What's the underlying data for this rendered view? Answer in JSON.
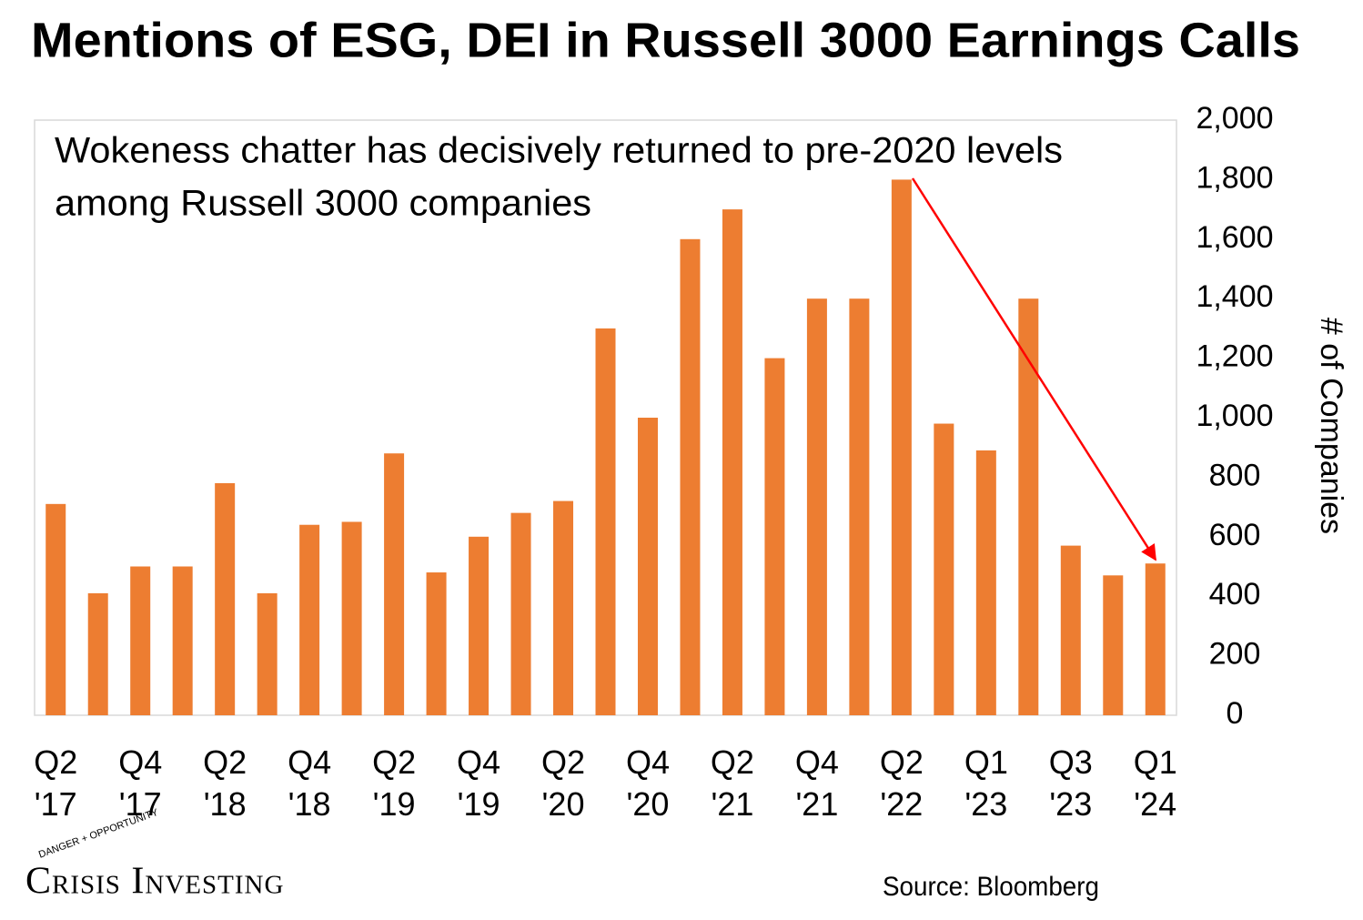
{
  "chart_data": {
    "type": "bar",
    "title": "Mentions of ESG, DEI in Russell 3000 Earnings Calls",
    "annotation": [
      "Wokeness chatter has decisively returned to pre-2020 levels",
      "among Russell 3000 companies"
    ],
    "y_label": "# of Companies",
    "categories": [
      "Q2 '17",
      null,
      "Q4 '17",
      null,
      "Q2 '18",
      null,
      "Q4 '18",
      null,
      "Q2 '19",
      null,
      "Q4 '19",
      null,
      "Q2 '20",
      null,
      "Q4 '20",
      null,
      "Q2 '21",
      null,
      "Q4 '21",
      null,
      "Q2 '22",
      null,
      "Q1 '23",
      null,
      "Q3 '23",
      null,
      "Q1 '24"
    ],
    "values": [
      710,
      410,
      500,
      500,
      780,
      410,
      640,
      650,
      880,
      480,
      600,
      680,
      720,
      1300,
      1000,
      1600,
      1700,
      1200,
      1400,
      1400,
      1800,
      980,
      890,
      1400,
      570,
      470,
      510
    ],
    "color": "#ed7d31",
    "ylim": [
      0,
      2000
    ],
    "yticks": [
      0,
      200,
      400,
      600,
      800,
      {
        "value": 1000,
        "label": "1,000"
      },
      {
        "value": 1200,
        "label": "1,200"
      },
      {
        "value": 1400,
        "label": "1,400"
      },
      {
        "value": 1600,
        "label": "1,600"
      },
      {
        "value": 1800,
        "label": "1,800"
      },
      {
        "value": 2000,
        "label": "2,000"
      }
    ],
    "y_axis_side": "right",
    "grid": false,
    "source": "Source: Bloomberg",
    "logo": "Crisis Investing",
    "logo_tagline": "DANGER + OPPORTUNITY"
  }
}
